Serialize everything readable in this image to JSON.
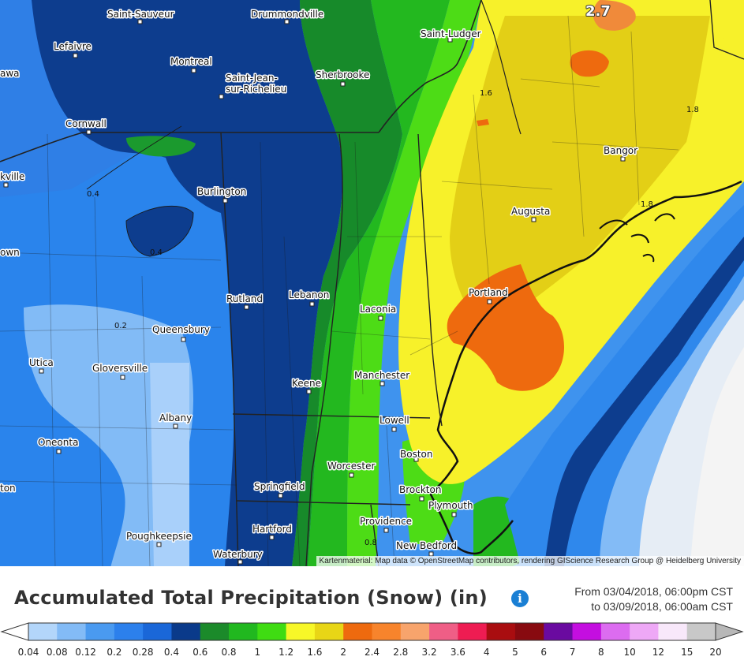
{
  "map": {
    "attribution": "Kartenmaterial: Map data © OpenStreetMap contributors, rendering GIScience Research Group @ Heidelberg University",
    "cities": [
      "Saint-Sauveur",
      "Drummondville",
      "Lefaivre",
      "Montreal",
      "Saint-Jean-",
      "sur-Richelieu",
      "Sherbrooke",
      "Saint-Ludger",
      "awa",
      "Cornwall",
      "kville",
      "Burlington",
      "Augusta",
      "Bangor",
      "own",
      "Rutland",
      "Lebanon",
      "Laconia",
      "Portland",
      "Queensbury",
      "Utica",
      "Gloversville",
      "Keene",
      "Manchester",
      "Albany",
      "Lowell",
      "Oneonta",
      "Boston",
      "Worcester",
      "Springfield",
      "Brockton",
      "Plymouth",
      "ton",
      "Providence",
      "Hartford",
      "Poughkeepsie",
      "New Bedford",
      "Waterbury"
    ],
    "contour_labels": [
      "2.7",
      "1.6",
      "1.8",
      "0.4",
      "0.4",
      "0.2",
      "1.8",
      "0.8"
    ]
  },
  "header": {
    "title": "Accumulated Total Precipitation (Snow) (in)",
    "info_icon": "info-icon",
    "range_line1": "From 03/04/2018, 06:00pm CST",
    "range_line2": "to 03/09/2018, 06:00am CST"
  },
  "legend": {
    "ticks": [
      "0.04",
      "0.08",
      "0.12",
      "0.2",
      "0.28",
      "0.4",
      "0.6",
      "0.8",
      "1",
      "1.2",
      "1.6",
      "2",
      "2.4",
      "2.8",
      "3.2",
      "3.6",
      "4",
      "5",
      "6",
      "7",
      "8",
      "10",
      "12",
      "15",
      "20"
    ],
    "colors": [
      "#b3d6fa",
      "#83bbf6",
      "#4a9af0",
      "#2c80ec",
      "#1a67d8",
      "#0a3a8a",
      "#1b8a2a",
      "#21b81f",
      "#3fdc12",
      "#f7f728",
      "#e8d616",
      "#ee6a0e",
      "#f7842c",
      "#f7a46c",
      "#ef5e86",
      "#ee1c52",
      "#a90d10",
      "#880a10",
      "#6a0aa0",
      "#c40ee0",
      "#dc6cf0",
      "#eea8f6",
      "#f8e8fa",
      "#c8c8c8"
    ]
  },
  "colors": {
    "title_text": "#333333",
    "info_icon": "#1a7fd4"
  }
}
